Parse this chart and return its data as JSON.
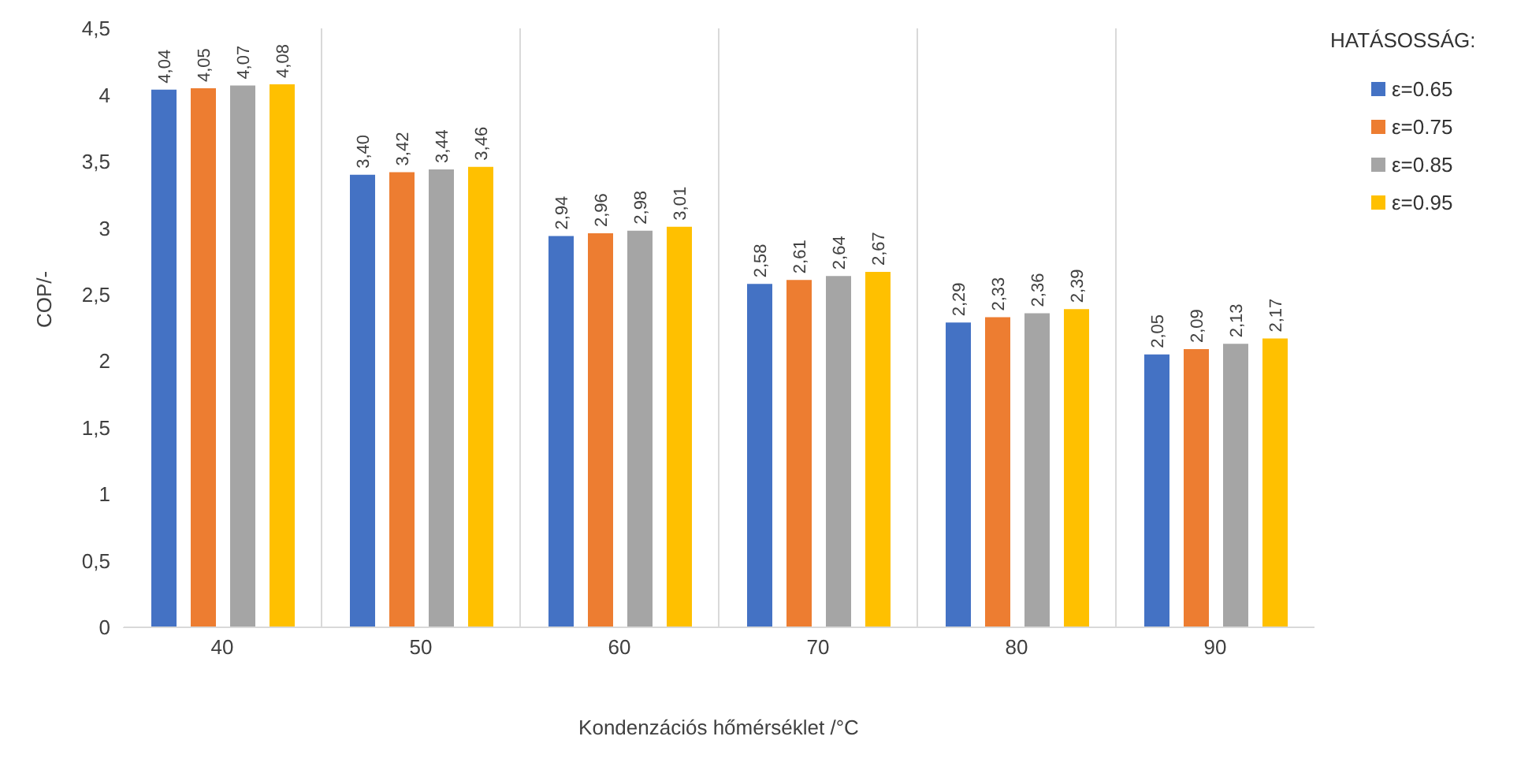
{
  "chart_data": {
    "type": "bar",
    "xlabel": "Kondenzációs hőmérséklet /°C",
    "ylabel": "COP/-",
    "legend_title": "HATÁSOSSÁG:",
    "categories": [
      "40",
      "50",
      "60",
      "70",
      "80",
      "90"
    ],
    "series": [
      {
        "name": "ε=0.65",
        "color": "#4472c4",
        "values": [
          4.04,
          3.4,
          2.94,
          2.58,
          2.29,
          2.05
        ],
        "value_labels": [
          "4,04",
          "3,40",
          "2,94",
          "2,58",
          "2,29",
          "2,05"
        ]
      },
      {
        "name": "ε=0.75",
        "color": "#ed7d31",
        "values": [
          4.05,
          3.42,
          2.96,
          2.61,
          2.33,
          2.09
        ],
        "value_labels": [
          "4,05",
          "3,42",
          "2,96",
          "2,61",
          "2,33",
          "2,09"
        ]
      },
      {
        "name": "ε=0.85",
        "color": "#a5a5a5",
        "values": [
          4.07,
          3.44,
          2.98,
          2.64,
          2.36,
          2.13
        ],
        "value_labels": [
          "4,07",
          "3,44",
          "2,98",
          "2,64",
          "2,36",
          "2,13"
        ]
      },
      {
        "name": "ε=0.95",
        "color": "#ffc000",
        "values": [
          4.08,
          3.46,
          3.01,
          2.67,
          2.39,
          2.17
        ],
        "value_labels": [
          "4,08",
          "3,46",
          "3,01",
          "2,67",
          "2,39",
          "2,17"
        ]
      }
    ],
    "ylim": [
      0,
      4.5
    ],
    "yticks": [
      0,
      {
        "value": 0.5,
        "label": "0,5"
      },
      1,
      {
        "value": 1.5,
        "label": "1,5"
      },
      2,
      {
        "value": 2.5,
        "label": "2,5"
      },
      3,
      {
        "value": 3.5,
        "label": "3,5"
      },
      4,
      {
        "value": 4.5,
        "label": "4,5"
      }
    ],
    "grid": "x",
    "legend": "top right"
  }
}
